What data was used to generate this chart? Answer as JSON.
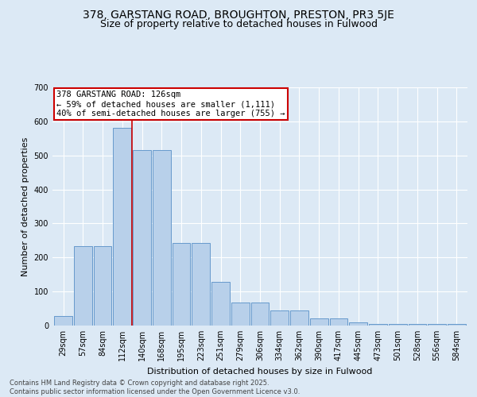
{
  "title_line1": "378, GARSTANG ROAD, BROUGHTON, PRESTON, PR3 5JE",
  "title_line2": "Size of property relative to detached houses in Fulwood",
  "xlabel": "Distribution of detached houses by size in Fulwood",
  "ylabel": "Number of detached properties",
  "categories": [
    "29sqm",
    "57sqm",
    "84sqm",
    "112sqm",
    "140sqm",
    "168sqm",
    "195sqm",
    "223sqm",
    "251sqm",
    "279sqm",
    "306sqm",
    "334sqm",
    "362sqm",
    "390sqm",
    "417sqm",
    "445sqm",
    "473sqm",
    "501sqm",
    "528sqm",
    "556sqm",
    "584sqm"
  ],
  "values": [
    28,
    233,
    233,
    580,
    515,
    515,
    242,
    242,
    128,
    68,
    68,
    45,
    45,
    22,
    22,
    10,
    5,
    5,
    5,
    5,
    5
  ],
  "bar_color": "#b8d0ea",
  "bar_edge_color": "#6699cc",
  "vline_x": 3.5,
  "vline_color": "#cc0000",
  "annotation_text": "378 GARSTANG ROAD: 126sqm\n← 59% of detached houses are smaller (1,111)\n40% of semi-detached houses are larger (755) →",
  "annotation_box_color": "#cc0000",
  "ylim": [
    0,
    700
  ],
  "yticks": [
    0,
    100,
    200,
    300,
    400,
    500,
    600,
    700
  ],
  "background_color": "#dce9f5",
  "footer_line1": "Contains HM Land Registry data © Crown copyright and database right 2025.",
  "footer_line2": "Contains public sector information licensed under the Open Government Licence v3.0.",
  "title_fontsize": 10,
  "subtitle_fontsize": 9,
  "axis_label_fontsize": 8,
  "tick_fontsize": 7,
  "annotation_fontsize": 7.5,
  "footer_fontsize": 6
}
